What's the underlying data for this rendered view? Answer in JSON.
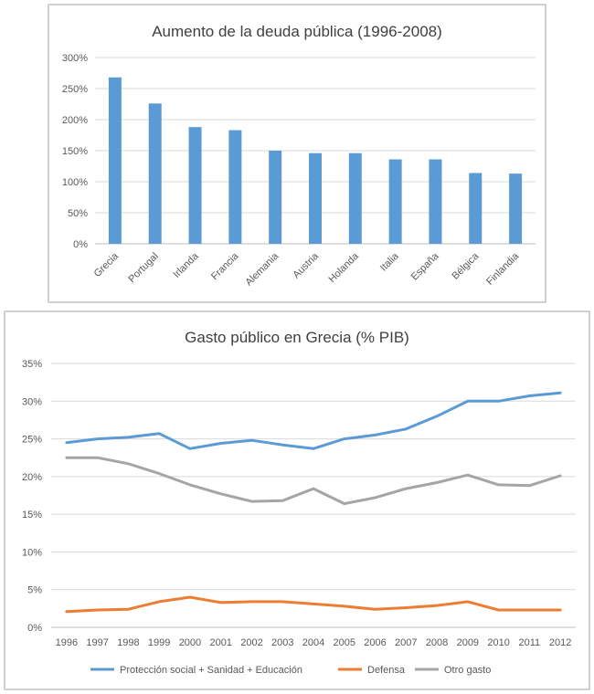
{
  "chart_data": [
    {
      "type": "bar",
      "title": "Aumento de la deuda pública (1996-2008)",
      "categories": [
        "Grecia",
        "Portugal",
        "Irlanda",
        "Francia",
        "Alemania",
        "Austria",
        "Holanda",
        "Italia",
        "España",
        "Bélgica",
        "Finlandia"
      ],
      "values": [
        268,
        226,
        188,
        183,
        150,
        146,
        146,
        136,
        136,
        114,
        113
      ],
      "ylim": [
        0,
        300
      ],
      "yticks": [
        "0%",
        "50%",
        "100%",
        "150%",
        "200%",
        "250%",
        "300%"
      ],
      "ytick_values": [
        0,
        50,
        100,
        150,
        200,
        250,
        300
      ],
      "grid": true,
      "color": "#5b9bd5"
    },
    {
      "type": "line",
      "title": "Gasto público en Grecia (% PIB)",
      "x": [
        "1996",
        "1997",
        "1998",
        "1999",
        "2000",
        "2001",
        "2002",
        "2003",
        "2004",
        "2005",
        "2006",
        "2007",
        "2008",
        "2009",
        "2010",
        "2011",
        "2012"
      ],
      "ylim": [
        0,
        35
      ],
      "yticks": [
        "0%",
        "5%",
        "10%",
        "15%",
        "20%",
        "25%",
        "30%",
        "35%"
      ],
      "ytick_values": [
        0,
        5,
        10,
        15,
        20,
        25,
        30,
        35
      ],
      "grid": true,
      "legend_position": "bottom",
      "series": [
        {
          "name": "Protección social + Sanidad + Educación",
          "color": "#5b9bd5",
          "values": [
            24.5,
            25.0,
            25.2,
            25.7,
            23.7,
            24.4,
            24.8,
            24.2,
            23.7,
            25.0,
            25.5,
            26.3,
            28.0,
            30.0,
            30.0,
            30.7,
            31.1
          ]
        },
        {
          "name": "Defensa",
          "color": "#ed7d31",
          "values": [
            2.1,
            2.3,
            2.4,
            3.4,
            4.0,
            3.3,
            3.4,
            3.4,
            3.1,
            2.8,
            2.4,
            2.6,
            2.9,
            3.4,
            2.3,
            2.3,
            2.3
          ]
        },
        {
          "name": "Otro gasto",
          "color": "#a5a5a5",
          "values": [
            22.5,
            22.5,
            21.7,
            20.4,
            18.9,
            17.7,
            16.7,
            16.8,
            18.4,
            16.4,
            17.2,
            18.4,
            19.2,
            20.2,
            18.9,
            18.8,
            20.1
          ]
        }
      ]
    }
  ]
}
